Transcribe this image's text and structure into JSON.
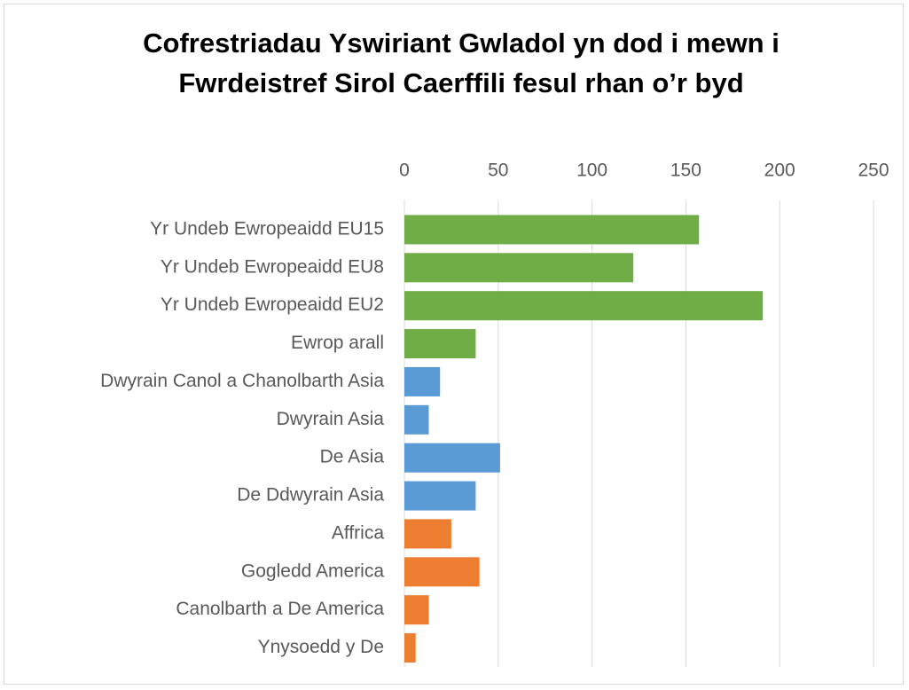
{
  "chart_data": {
    "type": "barh",
    "title": "Cofrestriadau Yswiriant Gwladol yn dod i mewn i Fwrdeistref Sirol Caerffili fesul rhan o’r byd",
    "categories": [
      "Yr Undeb Ewropeaidd EU15",
      "Yr Undeb Ewropeaidd EU8",
      "Yr Undeb Ewropeaidd EU2",
      "Ewrop arall",
      "Dwyrain Canol a Chanolbarth Asia",
      "Dwyrain Asia",
      "De Asia",
      "De Ddwyrain Asia",
      "Affrica",
      "Gogledd America",
      "Canolbarth a De America",
      "Ynysoedd y De"
    ],
    "values": [
      157,
      122,
      191,
      38,
      19,
      13,
      51,
      38,
      25,
      40,
      13,
      6
    ],
    "colors": [
      "#70ad47",
      "#70ad47",
      "#70ad47",
      "#70ad47",
      "#5b9bd5",
      "#5b9bd5",
      "#5b9bd5",
      "#5b9bd5",
      "#ed7d31",
      "#ed7d31",
      "#ed7d31",
      "#ed7d31"
    ],
    "xlim": [
      0,
      250
    ],
    "xticks": [
      0,
      50,
      100,
      150,
      200,
      250
    ],
    "grid": true
  }
}
